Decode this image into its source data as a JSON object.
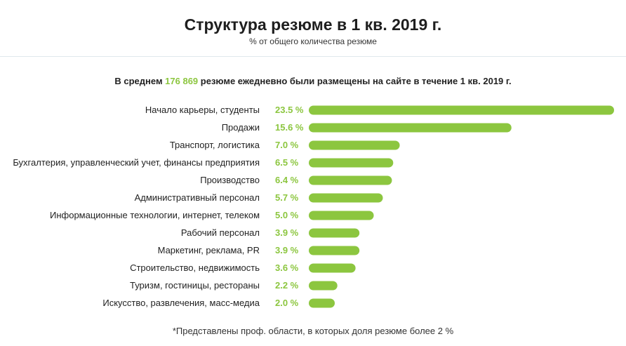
{
  "header": {
    "title": "Структура резюме в 1 кв. 2019 г.",
    "subtitle": "% от общего количества резюме"
  },
  "summary": {
    "prefix": "В среднем ",
    "highlight": "176 869",
    "suffix": " резюме ежедневно были размещены на сайте в течение 1 кв. 2019 г."
  },
  "footnote": "*Представлены проф. области, в которых доля резюме более 2 %",
  "colors": {
    "bar": "#8cc63f",
    "value_label": "#8cc63f",
    "category_label": "#222222"
  },
  "chart_data": {
    "type": "bar",
    "orientation": "horizontal",
    "title": "Структура резюме в 1 кв. 2019 г.",
    "subtitle": "% от общего количества резюме",
    "categories": [
      "Начало карьеры, студенты",
      "Продажи",
      "Транспорт, логистика",
      "Бухгалтерия, управленческий учет, финансы предприятия",
      "Производство",
      "Административный персонал",
      "Информационные технологии, интернет, телеком",
      "Рабочий персонал",
      "Маркетинг, реклама, PR",
      "Строительство, недвижимость",
      "Туризм, гостиницы, рестораны",
      "Искусство, развлечения, масс-медиа"
    ],
    "values": [
      23.5,
      15.6,
      7.0,
      6.5,
      6.4,
      5.7,
      5.0,
      3.9,
      3.9,
      3.6,
      2.2,
      2.0
    ],
    "value_labels": [
      "23.5 %",
      "15.6 %",
      "7.0 %",
      "6.5 %",
      "6.4 %",
      "5.7 %",
      "5.0 %",
      "3.9 %",
      "3.9 %",
      "3.6 %",
      "2.2 %",
      "2.0 %"
    ],
    "xlim": [
      0,
      23.5
    ],
    "grid": false,
    "legend": "none"
  }
}
